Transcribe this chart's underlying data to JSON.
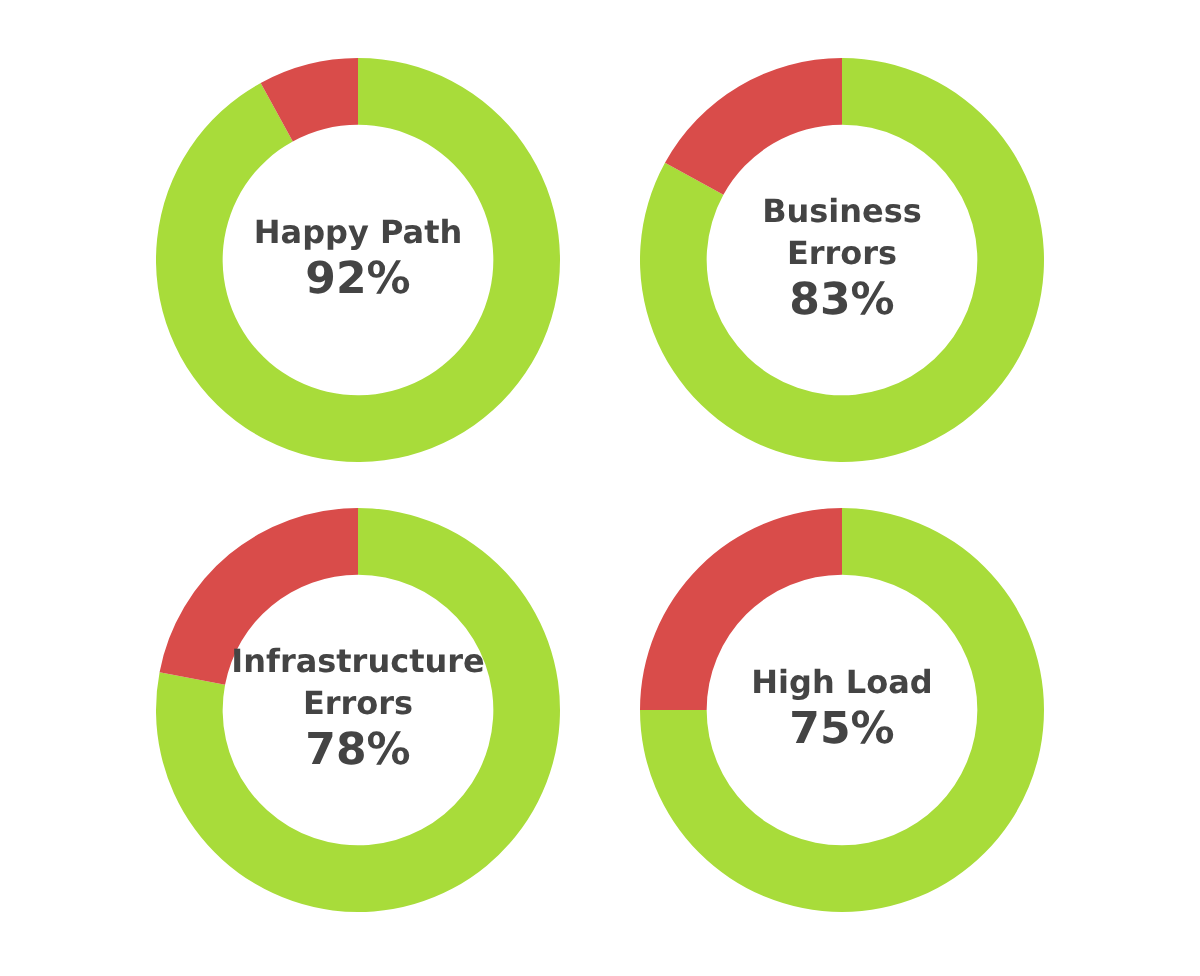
{
  "chart_data": [
    {
      "type": "donut",
      "title": "Happy Path",
      "categories": [
        null,
        null
      ],
      "values": [
        92,
        8
      ],
      "colors": [
        "#a8dc3a",
        "#d94c4a"
      ],
      "value_labels": [
        "92%",
        null
      ]
    },
    {
      "type": "donut",
      "title": "Business Errors",
      "categories": [
        null,
        null
      ],
      "values": [
        83,
        17
      ],
      "colors": [
        "#a8dc3a",
        "#d94c4a"
      ],
      "value_labels": [
        "83%",
        null
      ]
    },
    {
      "type": "donut",
      "title": "Infrastructure Errors",
      "categories": [
        null,
        null
      ],
      "values": [
        78,
        22
      ],
      "colors": [
        "#a8dc3a",
        "#d94c4a"
      ],
      "value_labels": [
        "78%",
        null
      ]
    },
    {
      "type": "donut",
      "title": "High Load",
      "categories": [
        null,
        null
      ],
      "values": [
        75,
        25
      ],
      "colors": [
        "#a8dc3a",
        "#d94c4a"
      ],
      "value_labels": [
        "75%",
        null
      ]
    }
  ]
}
